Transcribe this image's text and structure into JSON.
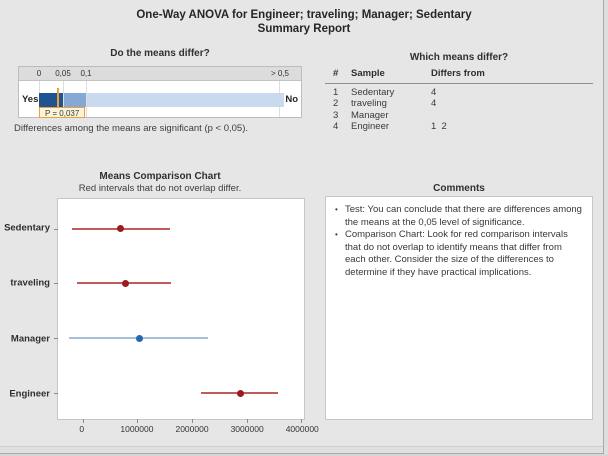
{
  "window": {
    "title_line1": "One-Way ANOVA for Engineer; traveling; Manager; Sedentary",
    "title_line2": "Summary Report"
  },
  "gauge": {
    "title": "Do the means differ?",
    "tick_labels": [
      "0",
      "0,05",
      "0,1",
      "> 0,5"
    ],
    "yes_label": "Yes",
    "no_label": "No",
    "p_value": 0.037,
    "alpha": 0.05,
    "p_label": "P = 0,037",
    "caption": "Differences among the means are significant (p < 0,05).",
    "colors": {
      "significant": "#1f5391",
      "marginal": "#85a8d6",
      "not_significant": "#c9daee",
      "marker": "#e9a23b"
    }
  },
  "differ_table": {
    "title": "Which means differ?",
    "col_num": "#",
    "col_sample": "Sample",
    "col_differs": "Differs from",
    "rows": [
      {
        "num": "1",
        "sample": "Sedentary",
        "differs": "4"
      },
      {
        "num": "2",
        "sample": "traveling",
        "differs": "4"
      },
      {
        "num": "3",
        "sample": "Manager",
        "differs": ""
      },
      {
        "num": "4",
        "sample": "Engineer",
        "differs": "1  2"
      }
    ]
  },
  "chart_data": {
    "type": "interval",
    "title": "Means Comparison Chart",
    "subtitle": "Red intervals that do not overlap differ.",
    "categories": [
      "Sedentary",
      "traveling",
      "Manager",
      "Engineer"
    ],
    "series": [
      {
        "name": "Sedentary",
        "low": -200000,
        "mean": 700000,
        "high": 1600000,
        "color": "red"
      },
      {
        "name": "traveling",
        "low": -100000,
        "mean": 780000,
        "high": 1620000,
        "color": "red"
      },
      {
        "name": "Manager",
        "low": -250000,
        "mean": 1040000,
        "high": 2290000,
        "color": "blue"
      },
      {
        "name": "Engineer",
        "low": 2160000,
        "mean": 2890000,
        "high": 3580000,
        "color": "red"
      }
    ],
    "x_tick_values": [
      0,
      1000000,
      2000000,
      3000000,
      4000000
    ],
    "x_tick_labels": [
      "0",
      "1000000",
      "2000000",
      "3000000",
      "4000000"
    ],
    "xlim": [
      -450000,
      4050000
    ],
    "grid": false,
    "legend": "none",
    "colors": {
      "red_line": "#c05c5e",
      "red_dot": "#9a1c20",
      "blue_line": "#a3c0dc",
      "blue_dot": "#2268ae"
    }
  },
  "comments": {
    "title": "Comments",
    "items": [
      "Test: You can conclude that there are differences among the means at the 0,05 level of significance.",
      "Comparison Chart: Look for red comparison intervals that do not overlap to identify means that differ from each other. Consider the size of the differences to determine if they have practical implications."
    ]
  }
}
